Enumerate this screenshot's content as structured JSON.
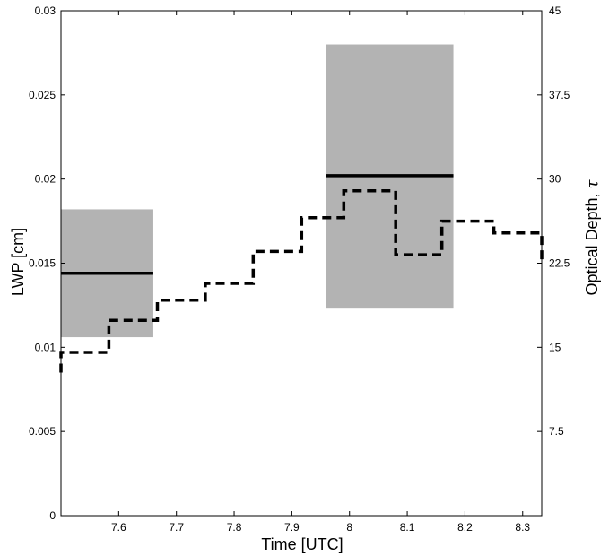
{
  "chart_data": {
    "type": "line",
    "xlabel": "Time [UTC]",
    "ylabel": "LWP [cm]",
    "y2label_text": "Optical Depth, ",
    "y2label_symbol": "τ",
    "xlim": [
      7.5,
      8.333
    ],
    "ylim": [
      0,
      0.03
    ],
    "y2lim": [
      0,
      45
    ],
    "grid": false,
    "legend": "none",
    "x_ticks": [
      "7.6",
      "7.7",
      "7.8",
      "7.9",
      "8",
      "8.1",
      "8.2",
      "8.3"
    ],
    "y_ticks": [
      "0",
      "0.005",
      "0.01",
      "0.015",
      "0.02",
      "0.025",
      "0.03"
    ],
    "y2_ticks": [
      "7.5",
      "15",
      "22.5",
      "30",
      "37.5",
      "45"
    ],
    "boxes": [
      {
        "x_start": 7.5,
        "x_end": 7.66,
        "y_low": 0.0106,
        "y_high": 0.0182,
        "mean": 0.0144
      },
      {
        "x_start": 7.96,
        "x_end": 8.18,
        "y_low": 0.0123,
        "y_high": 0.028,
        "mean": 0.0202
      }
    ],
    "series": [
      {
        "style": "dashed-step",
        "axis": "y",
        "x": [
          7.5,
          7.5,
          7.583,
          7.583,
          7.667,
          7.667,
          7.75,
          7.75,
          7.833,
          7.833,
          7.917,
          7.917,
          7.99,
          7.99,
          8.08,
          8.08,
          8.16,
          8.16,
          8.25,
          8.25,
          8.333,
          8.333
        ],
        "y": [
          0.0085,
          0.0097,
          0.0097,
          0.0116,
          0.0116,
          0.0128,
          0.0128,
          0.0138,
          0.0138,
          0.0157,
          0.0157,
          0.0177,
          0.0177,
          0.0193,
          0.0193,
          0.0155,
          0.0155,
          0.0175,
          0.0175,
          0.0168,
          0.0168,
          0.015
        ]
      }
    ],
    "box_color": "#b3b3b3",
    "line_color": "#000000"
  }
}
